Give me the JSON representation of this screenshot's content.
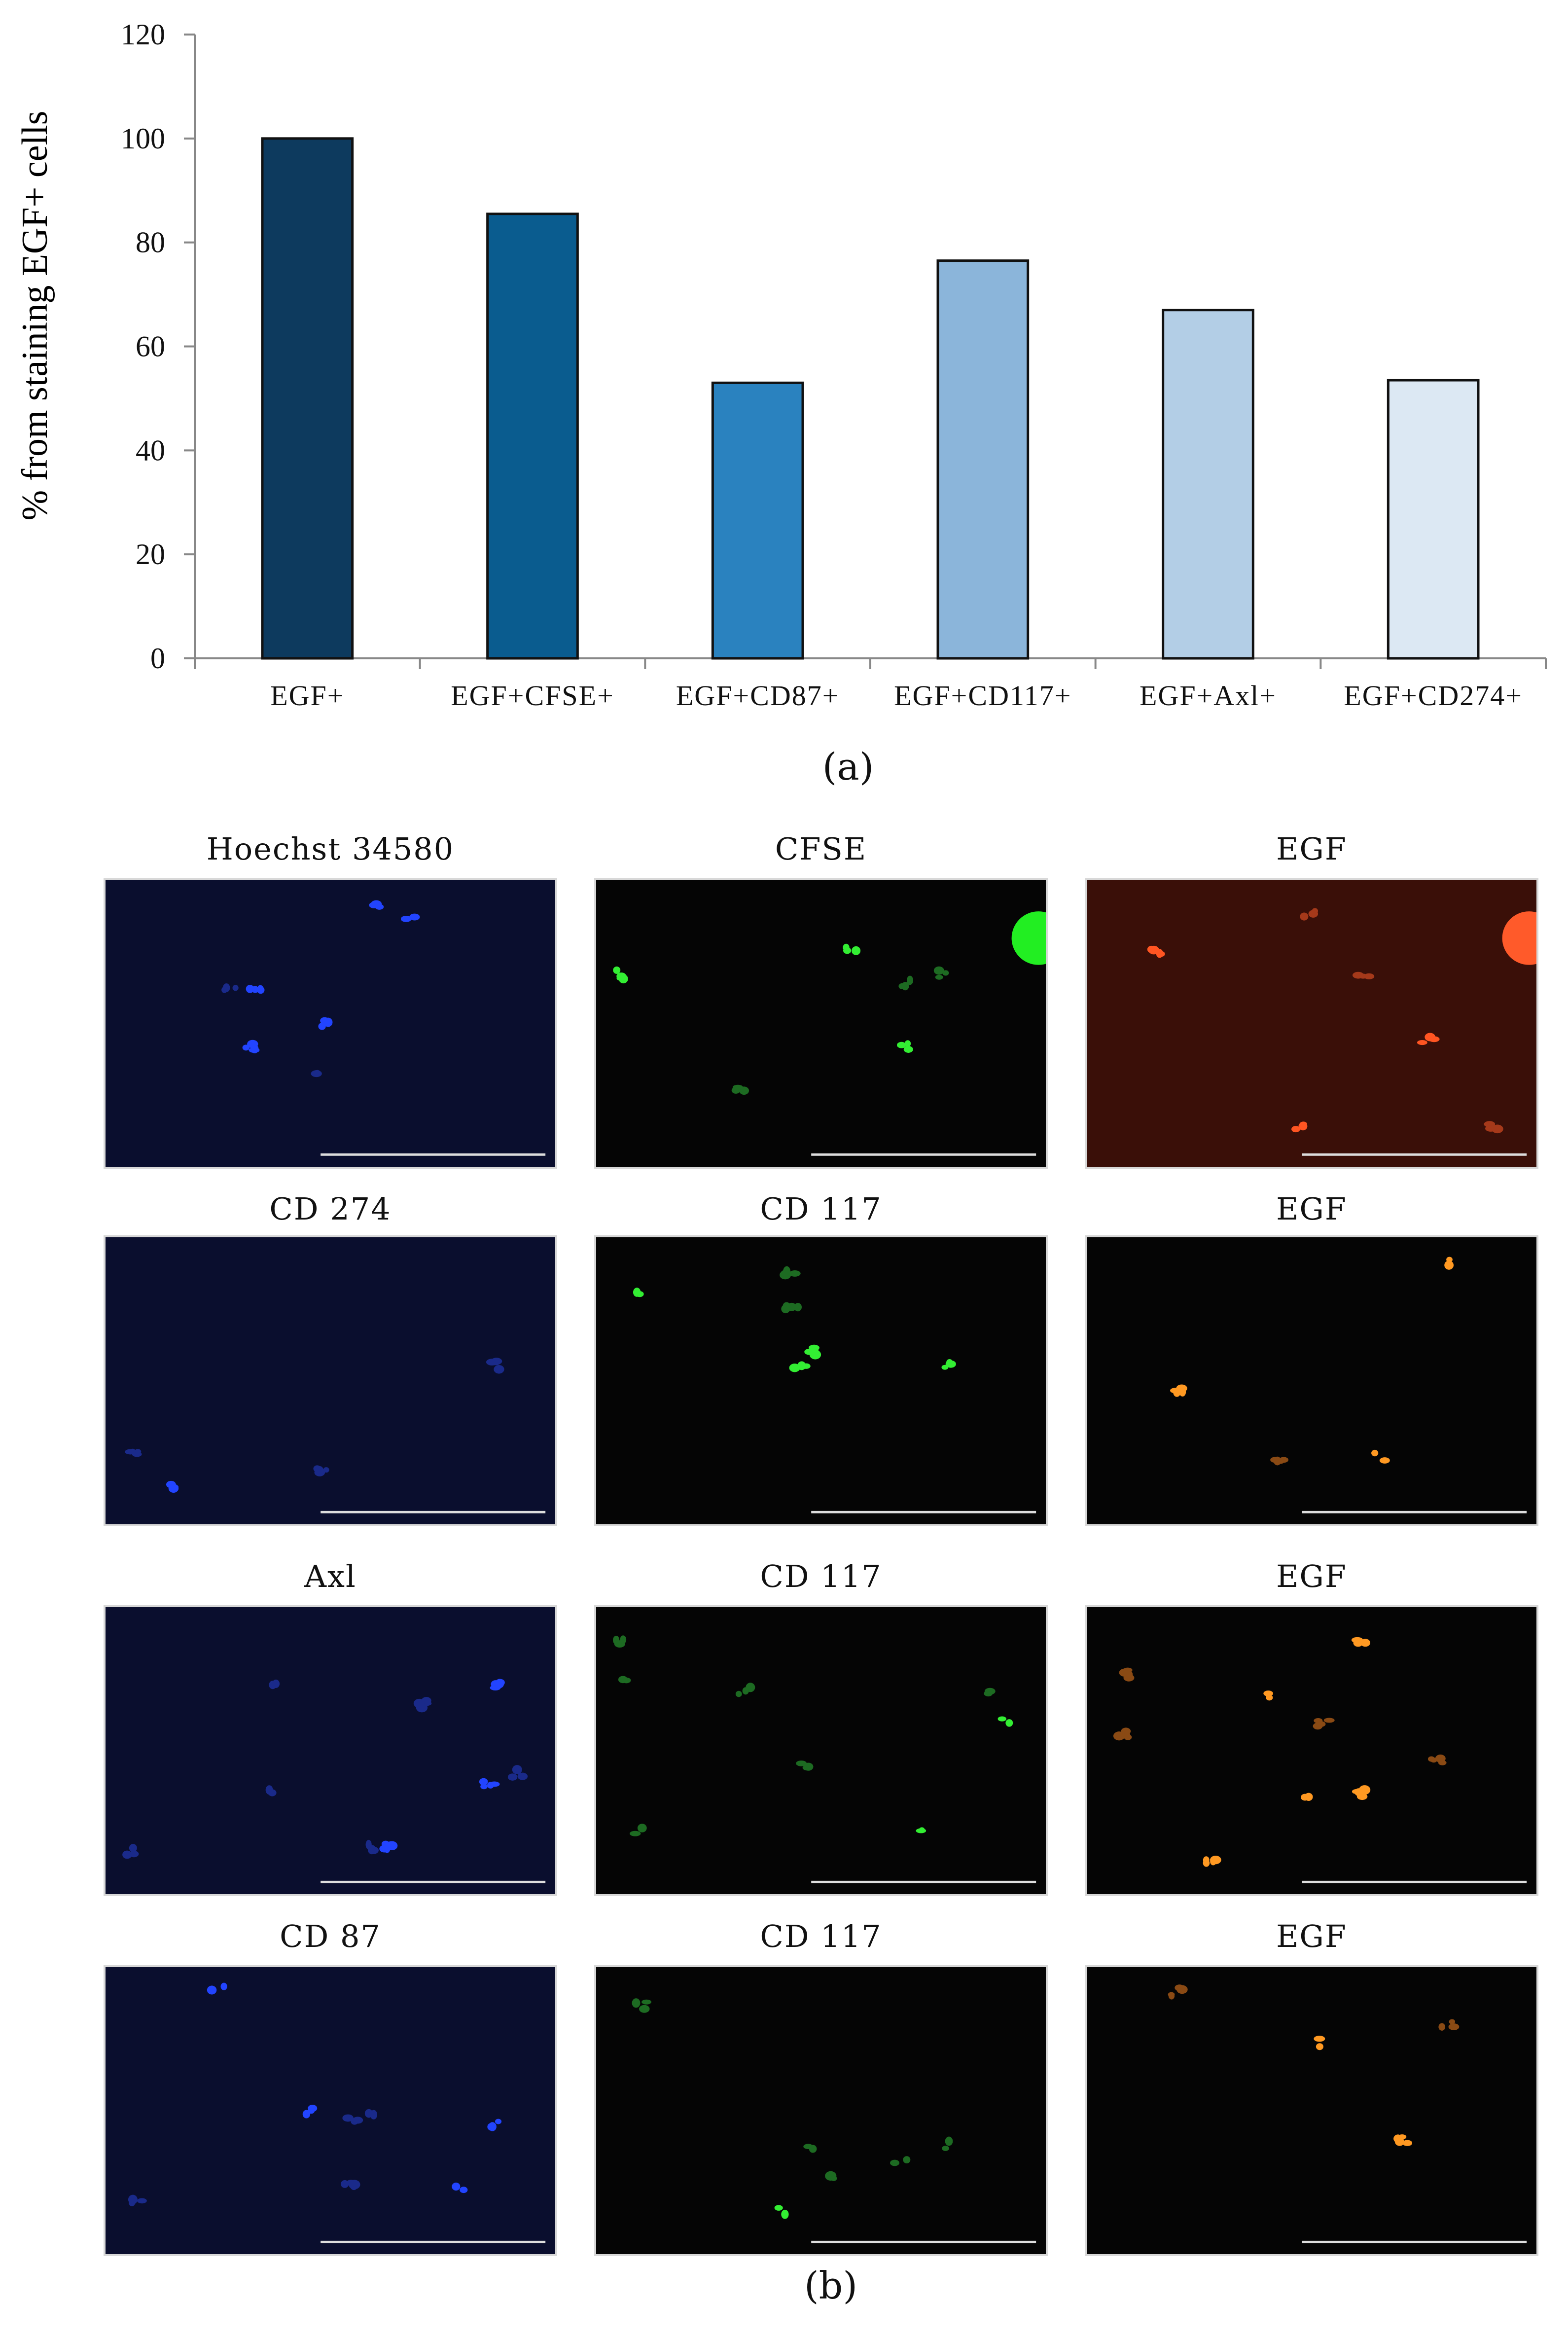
{
  "chart_data": {
    "type": "bar",
    "categories": [
      "EGF+",
      "EGF+CFSE+",
      "EGF+CD87+",
      "EGF+CD117+",
      "EGF+Axl+",
      "EGF+CD274+"
    ],
    "values": [
      100,
      85.5,
      53,
      76.5,
      67,
      53.5
    ],
    "colors": [
      "#0d3a5e",
      "#0a5c8f",
      "#2a82bf",
      "#8bb5da",
      "#b3cee6",
      "#dce8f3"
    ],
    "title": "",
    "xlabel": "",
    "ylabel": "% from staining EGF+ cells",
    "ylim": [
      0,
      120
    ],
    "yticks": [
      0,
      20,
      40,
      60,
      80,
      100,
      120
    ],
    "grid": false
  },
  "labels": {
    "panel_a": "(a)",
    "panel_b": "(b)"
  },
  "micrographs": [
    {
      "title": "Hoechst 34580",
      "channel": "blue"
    },
    {
      "title": "CFSE",
      "channel": "green"
    },
    {
      "title": "EGF",
      "channel": "red"
    },
    {
      "title": "CD 274",
      "channel": "blue"
    },
    {
      "title": "CD 117",
      "channel": "green"
    },
    {
      "title": "EGF",
      "channel": "orange"
    },
    {
      "title": "Axl",
      "channel": "blue"
    },
    {
      "title": "CD 117",
      "channel": "green"
    },
    {
      "title": "EGF",
      "channel": "orange"
    },
    {
      "title": "CD 87",
      "channel": "blue"
    },
    {
      "title": "CD 117",
      "channel": "green"
    },
    {
      "title": "EGF",
      "channel": "orange"
    }
  ]
}
